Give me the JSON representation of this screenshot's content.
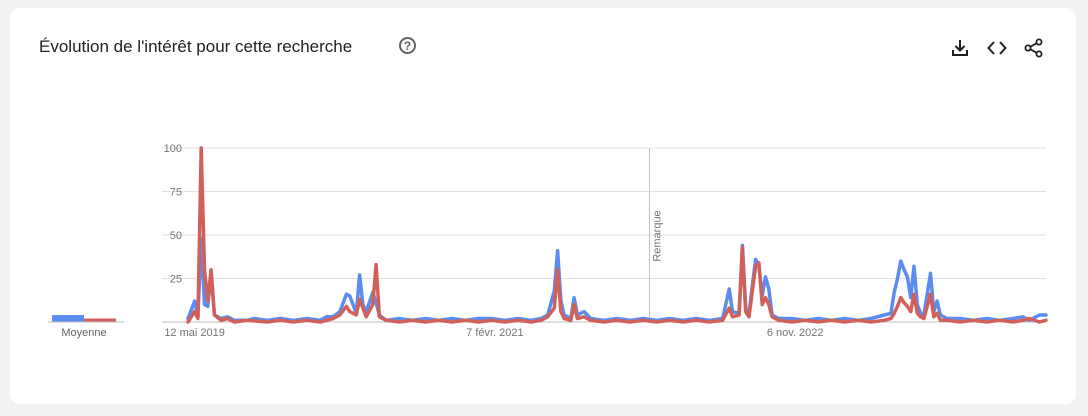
{
  "header": {
    "title": "Évolution de l'intérêt pour cette recherche",
    "help_glyph": "?"
  },
  "toolbar": {
    "icons": [
      "download-icon",
      "embed-code-icon",
      "share-icon"
    ]
  },
  "colors": {
    "series_1": "#5b8def",
    "series_2": "#d2605a",
    "grid": "#e0e0e0",
    "card": "#ffffff",
    "page": "#f1f3f4"
  },
  "chart_data": {
    "type": "line",
    "title": "Évolution de l'intérêt pour cette recherche",
    "x_start": "2019-04-28",
    "x_end": "2024-04-21",
    "x_ticks": [
      {
        "label": "12 mai 2019",
        "date": "2019-05-12"
      },
      {
        "label": "7 févr. 2021",
        "date": "2021-02-07"
      },
      {
        "label": "6 nov. 2022",
        "date": "2022-11-06"
      }
    ],
    "ylim": [
      0,
      100
    ],
    "y_ticks": [
      25,
      50,
      75,
      100
    ],
    "grid": true,
    "annotation": {
      "label": "Remarque",
      "date": "2022-01-01"
    },
    "averages_label": "Moyenne",
    "averages": [
      4,
      2
    ],
    "series": [
      {
        "points": [
          [
            "2019-04-28",
            2
          ],
          [
            "2019-05-12",
            12
          ],
          [
            "2019-05-19",
            3
          ],
          [
            "2019-05-26",
            48
          ],
          [
            "2019-06-02",
            10
          ],
          [
            "2019-06-09",
            9
          ],
          [
            "2019-06-16",
            28
          ],
          [
            "2019-06-23",
            4
          ],
          [
            "2019-07-07",
            2
          ],
          [
            "2019-07-21",
            3
          ],
          [
            "2019-08-04",
            1
          ],
          [
            "2019-09-01",
            1
          ],
          [
            "2019-09-15",
            2
          ],
          [
            "2019-10-13",
            1
          ],
          [
            "2019-11-10",
            2
          ],
          [
            "2019-12-08",
            1
          ],
          [
            "2020-01-05",
            2
          ],
          [
            "2020-02-02",
            1
          ],
          [
            "2020-02-16",
            3
          ],
          [
            "2020-03-01",
            3
          ],
          [
            "2020-03-15",
            6
          ],
          [
            "2020-03-29",
            16
          ],
          [
            "2020-04-05",
            15
          ],
          [
            "2020-04-19",
            5
          ],
          [
            "2020-04-26",
            27
          ],
          [
            "2020-05-03",
            10
          ],
          [
            "2020-05-10",
            6
          ],
          [
            "2020-05-24",
            17
          ],
          [
            "2020-05-31",
            11
          ],
          [
            "2020-06-07",
            4
          ],
          [
            "2020-06-21",
            1
          ],
          [
            "2020-07-19",
            2
          ],
          [
            "2020-08-16",
            1
          ],
          [
            "2020-09-13",
            2
          ],
          [
            "2020-10-11",
            1
          ],
          [
            "2020-11-08",
            2
          ],
          [
            "2020-12-06",
            1
          ],
          [
            "2021-01-03",
            2
          ],
          [
            "2021-01-31",
            2
          ],
          [
            "2021-02-28",
            1
          ],
          [
            "2021-03-28",
            2
          ],
          [
            "2021-04-25",
            1
          ],
          [
            "2021-05-16",
            2
          ],
          [
            "2021-05-30",
            4
          ],
          [
            "2021-06-13",
            18
          ],
          [
            "2021-06-20",
            41
          ],
          [
            "2021-06-27",
            12
          ],
          [
            "2021-07-04",
            4
          ],
          [
            "2021-07-18",
            2
          ],
          [
            "2021-07-25",
            14
          ],
          [
            "2021-08-01",
            4
          ],
          [
            "2021-08-15",
            6
          ],
          [
            "2021-08-29",
            2
          ],
          [
            "2021-09-26",
            1
          ],
          [
            "2021-10-24",
            2
          ],
          [
            "2021-11-21",
            1
          ],
          [
            "2021-12-19",
            2
          ],
          [
            "2022-01-16",
            1
          ],
          [
            "2022-02-13",
            2
          ],
          [
            "2022-03-13",
            1
          ],
          [
            "2022-04-10",
            2
          ],
          [
            "2022-05-08",
            1
          ],
          [
            "2022-06-05",
            2
          ],
          [
            "2022-06-19",
            19
          ],
          [
            "2022-06-26",
            6
          ],
          [
            "2022-07-10",
            5
          ],
          [
            "2022-07-17",
            44
          ],
          [
            "2022-07-24",
            8
          ],
          [
            "2022-07-31",
            5
          ],
          [
            "2022-08-14",
            36
          ],
          [
            "2022-08-21",
            32
          ],
          [
            "2022-08-28",
            15
          ],
          [
            "2022-09-04",
            26
          ],
          [
            "2022-09-11",
            19
          ],
          [
            "2022-09-18",
            4
          ],
          [
            "2022-10-02",
            2
          ],
          [
            "2022-10-30",
            2
          ],
          [
            "2022-11-27",
            1
          ],
          [
            "2022-12-25",
            2
          ],
          [
            "2023-01-22",
            1
          ],
          [
            "2023-02-19",
            2
          ],
          [
            "2023-03-19",
            1
          ],
          [
            "2023-04-16",
            2
          ],
          [
            "2023-05-14",
            4
          ],
          [
            "2023-05-28",
            5
          ],
          [
            "2023-06-04",
            17
          ],
          [
            "2023-06-11",
            25
          ],
          [
            "2023-06-18",
            35
          ],
          [
            "2023-06-25",
            30
          ],
          [
            "2023-07-02",
            26
          ],
          [
            "2023-07-09",
            14
          ],
          [
            "2023-07-16",
            32
          ],
          [
            "2023-07-23",
            10
          ],
          [
            "2023-07-30",
            5
          ],
          [
            "2023-08-06",
            4
          ],
          [
            "2023-08-20",
            28
          ],
          [
            "2023-08-27",
            6
          ],
          [
            "2023-09-03",
            12
          ],
          [
            "2023-09-10",
            4
          ],
          [
            "2023-09-24",
            2
          ],
          [
            "2023-10-22",
            2
          ],
          [
            "2023-11-19",
            1
          ],
          [
            "2023-12-17",
            2
          ],
          [
            "2024-01-14",
            1
          ],
          [
            "2024-02-11",
            2
          ],
          [
            "2024-03-03",
            3
          ],
          [
            "2024-03-17",
            1
          ],
          [
            "2024-04-07",
            4
          ],
          [
            "2024-04-21",
            4
          ]
        ]
      },
      {
        "points": [
          [
            "2019-04-28",
            0
          ],
          [
            "2019-05-12",
            6
          ],
          [
            "2019-05-19",
            2
          ],
          [
            "2019-05-26",
            100
          ],
          [
            "2019-06-02",
            30
          ],
          [
            "2019-06-09",
            12
          ],
          [
            "2019-06-16",
            30
          ],
          [
            "2019-06-23",
            4
          ],
          [
            "2019-07-07",
            1
          ],
          [
            "2019-07-21",
            2
          ],
          [
            "2019-08-04",
            0
          ],
          [
            "2019-09-01",
            1
          ],
          [
            "2019-10-13",
            0
          ],
          [
            "2019-11-10",
            1
          ],
          [
            "2019-12-08",
            0
          ],
          [
            "2020-01-05",
            1
          ],
          [
            "2020-02-02",
            0
          ],
          [
            "2020-03-01",
            2
          ],
          [
            "2020-03-15",
            4
          ],
          [
            "2020-03-29",
            9
          ],
          [
            "2020-04-05",
            6
          ],
          [
            "2020-04-19",
            4
          ],
          [
            "2020-04-26",
            13
          ],
          [
            "2020-05-03",
            8
          ],
          [
            "2020-05-10",
            3
          ],
          [
            "2020-05-24",
            10
          ],
          [
            "2020-05-31",
            33
          ],
          [
            "2020-06-07",
            3
          ],
          [
            "2020-06-21",
            1
          ],
          [
            "2020-07-19",
            0
          ],
          [
            "2020-08-16",
            1
          ],
          [
            "2020-09-13",
            0
          ],
          [
            "2020-10-11",
            1
          ],
          [
            "2020-11-08",
            0
          ],
          [
            "2020-12-06",
            1
          ],
          [
            "2021-01-03",
            0
          ],
          [
            "2021-01-31",
            1
          ],
          [
            "2021-02-28",
            0
          ],
          [
            "2021-03-28",
            1
          ],
          [
            "2021-04-25",
            0
          ],
          [
            "2021-05-16",
            1
          ],
          [
            "2021-05-30",
            3
          ],
          [
            "2021-06-13",
            8
          ],
          [
            "2021-06-20",
            30
          ],
          [
            "2021-06-27",
            6
          ],
          [
            "2021-07-04",
            2
          ],
          [
            "2021-07-18",
            1
          ],
          [
            "2021-07-25",
            10
          ],
          [
            "2021-08-01",
            2
          ],
          [
            "2021-08-15",
            3
          ],
          [
            "2021-08-29",
            1
          ],
          [
            "2021-09-26",
            0
          ],
          [
            "2021-10-24",
            1
          ],
          [
            "2021-11-21",
            0
          ],
          [
            "2021-12-19",
            1
          ],
          [
            "2022-01-16",
            0
          ],
          [
            "2022-02-13",
            1
          ],
          [
            "2022-03-13",
            0
          ],
          [
            "2022-04-10",
            1
          ],
          [
            "2022-05-08",
            0
          ],
          [
            "2022-06-05",
            1
          ],
          [
            "2022-06-19",
            8
          ],
          [
            "2022-06-26",
            3
          ],
          [
            "2022-07-10",
            4
          ],
          [
            "2022-07-17",
            43
          ],
          [
            "2022-07-24",
            6
          ],
          [
            "2022-07-31",
            3
          ],
          [
            "2022-08-14",
            32
          ],
          [
            "2022-08-21",
            34
          ],
          [
            "2022-08-28",
            10
          ],
          [
            "2022-09-04",
            14
          ],
          [
            "2022-09-11",
            10
          ],
          [
            "2022-09-18",
            3
          ],
          [
            "2022-10-02",
            1
          ],
          [
            "2022-10-30",
            0
          ],
          [
            "2022-11-27",
            1
          ],
          [
            "2022-12-25",
            0
          ],
          [
            "2023-01-22",
            1
          ],
          [
            "2023-02-19",
            0
          ],
          [
            "2023-03-19",
            1
          ],
          [
            "2023-04-16",
            0
          ],
          [
            "2023-05-14",
            1
          ],
          [
            "2023-05-28",
            2
          ],
          [
            "2023-06-04",
            5
          ],
          [
            "2023-06-11",
            9
          ],
          [
            "2023-06-18",
            14
          ],
          [
            "2023-06-25",
            11
          ],
          [
            "2023-07-02",
            9
          ],
          [
            "2023-07-09",
            6
          ],
          [
            "2023-07-16",
            16
          ],
          [
            "2023-07-23",
            5
          ],
          [
            "2023-07-30",
            3
          ],
          [
            "2023-08-06",
            2
          ],
          [
            "2023-08-20",
            16
          ],
          [
            "2023-08-27",
            3
          ],
          [
            "2023-09-03",
            5
          ],
          [
            "2023-09-10",
            1
          ],
          [
            "2023-09-24",
            1
          ],
          [
            "2023-10-22",
            0
          ],
          [
            "2023-11-19",
            1
          ],
          [
            "2023-12-17",
            0
          ],
          [
            "2024-01-14",
            1
          ],
          [
            "2024-02-11",
            0
          ],
          [
            "2024-03-03",
            1
          ],
          [
            "2024-03-17",
            2
          ],
          [
            "2024-04-07",
            0
          ],
          [
            "2024-04-21",
            1
          ]
        ]
      }
    ]
  }
}
